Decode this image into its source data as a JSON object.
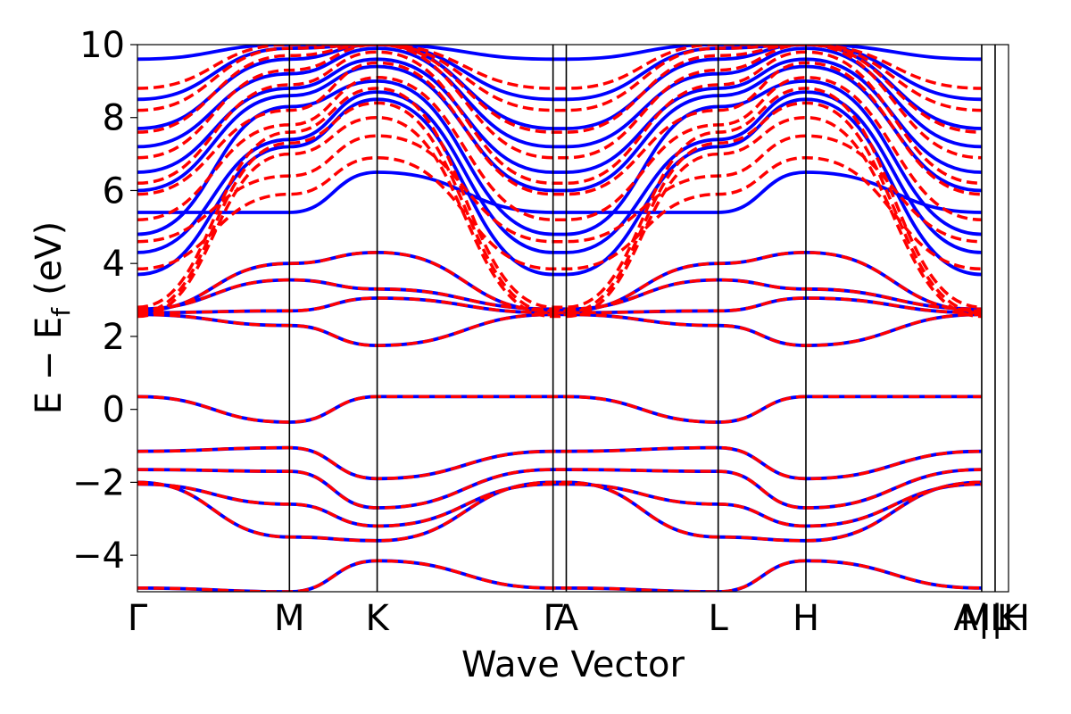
{
  "colors": {
    "series_a": "#0000ff",
    "series_b": "#ff0000",
    "axis": "#000000",
    "background": "#ffffff"
  },
  "chart_data": {
    "type": "line",
    "title": "",
    "xlabel": "Wave Vector",
    "ylabel_main": "E − E",
    "ylabel_sub": "f",
    "ylabel_unit": "(eV)",
    "ylim": [
      -5,
      10
    ],
    "xlim": [
      0,
      1
    ],
    "grid": false,
    "legend": "none",
    "yticks": [
      {
        "value": -4,
        "label": "−4"
      },
      {
        "value": -2,
        "label": "−2"
      },
      {
        "value": 0,
        "label": "0"
      },
      {
        "value": 2,
        "label": "2"
      },
      {
        "value": 4,
        "label": "4"
      },
      {
        "value": 6,
        "label": "6"
      },
      {
        "value": 8,
        "label": "8"
      },
      {
        "value": 10,
        "label": "10"
      }
    ],
    "kpoints": [
      {
        "label": "Γ",
        "x": 0.0
      },
      {
        "label": "M",
        "x": 0.1745
      },
      {
        "label": "K",
        "x": 0.2752
      },
      {
        "label": "Γ",
        "x": 0.4771
      },
      {
        "label": "A",
        "x": 0.4923
      },
      {
        "label": "L",
        "x": 0.6667
      },
      {
        "label": "H",
        "x": 0.7674
      },
      {
        "label": "A|L",
        "x": 0.9692
      },
      {
        "label": "M|H",
        "x": 0.9846
      },
      {
        "label": "K",
        "x": 1.0
      }
    ],
    "series": [
      {
        "style": "solid",
        "bands": [
          {
            "x": [
              0,
              0.1745,
              0.2752,
              0.4771,
              0.4923,
              0.6667,
              0.7674,
              0.9692
            ],
            "y": [
              0.35,
              -0.35,
              0.35,
              0.35,
              0.35,
              -0.35,
              0.35,
              0.35
            ]
          },
          {
            "x": [
              0,
              0.1745,
              0.2752,
              0.4771,
              0.4923,
              0.6667,
              0.7674,
              0.9692
            ],
            "y": [
              -1.15,
              -1.05,
              -1.9,
              -1.15,
              -1.15,
              -1.05,
              -1.9,
              -1.15
            ]
          },
          {
            "x": [
              0,
              0.1745,
              0.2752,
              0.4771,
              0.4923,
              0.6667,
              0.7674,
              0.9692
            ],
            "y": [
              -1.65,
              -1.7,
              -2.7,
              -1.65,
              -1.65,
              -1.7,
              -2.7,
              -1.65
            ]
          },
          {
            "x": [
              0,
              0.1745,
              0.2752,
              0.4771,
              0.4923,
              0.6667,
              0.7674,
              0.9692
            ],
            "y": [
              -2.05,
              -2.6,
              -3.2,
              -2.05,
              -2.05,
              -2.6,
              -3.2,
              -2.05
            ]
          },
          {
            "x": [
              0,
              0.1745,
              0.2752,
              0.4771,
              0.4923,
              0.6667,
              0.7674,
              0.9692
            ],
            "y": [
              -2.0,
              -3.5,
              -3.6,
              -2.0,
              -2.0,
              -3.5,
              -3.6,
              -2.0
            ]
          },
          {
            "x": [
              0,
              0.1745,
              0.2752,
              0.4771,
              0.4923,
              0.6667,
              0.7674,
              0.9692
            ],
            "y": [
              -4.9,
              -5.0,
              -4.15,
              -4.9,
              -4.9,
              -5.0,
              -4.15,
              -4.9
            ]
          },
          {
            "x": [
              0,
              0.1745,
              0.2752,
              0.4771,
              0.4923,
              0.6667,
              0.7674,
              0.9692
            ],
            "y": [
              2.6,
              2.3,
              1.75,
              2.6,
              2.6,
              2.3,
              1.75,
              2.6
            ]
          },
          {
            "x": [
              0,
              0.1745,
              0.2752,
              0.4771,
              0.4923,
              0.6667,
              0.7674,
              0.9692
            ],
            "y": [
              2.65,
              2.7,
              3.05,
              2.65,
              2.65,
              2.7,
              3.05,
              2.65
            ]
          },
          {
            "x": [
              0,
              0.1745,
              0.2752,
              0.4771,
              0.4923,
              0.6667,
              0.7674,
              0.9692
            ],
            "y": [
              2.75,
              3.55,
              3.3,
              2.75,
              2.75,
              3.55,
              3.3,
              2.75
            ]
          },
          {
            "x": [
              0,
              0.1745,
              0.2752,
              0.4771,
              0.4923,
              0.6667,
              0.7674,
              0.9692
            ],
            "y": [
              2.7,
              4.0,
              4.3,
              2.7,
              2.7,
              4.0,
              4.3,
              2.7
            ]
          },
          {
            "x": [
              0,
              0.1745,
              0.2752,
              0.4771,
              0.4923,
              0.6667,
              0.7674,
              0.9692
            ],
            "y": [
              3.7,
              7.2,
              8.5,
              3.7,
              3.7,
              7.2,
              8.5,
              3.7
            ]
          },
          {
            "x": [
              0,
              0.1745,
              0.2752,
              0.4771,
              0.4923,
              0.6667,
              0.7674,
              0.9692
            ],
            "y": [
              4.3,
              7.4,
              8.7,
              4.3,
              4.3,
              7.4,
              8.7,
              4.3
            ]
          },
          {
            "x": [
              0,
              0.1745,
              0.2752,
              0.4771,
              0.4923,
              0.6667,
              0.7674,
              0.9692
            ],
            "y": [
              4.8,
              8.3,
              9.0,
              4.8,
              4.8,
              8.3,
              9.0,
              4.8
            ]
          },
          {
            "x": [
              0,
              0.1745,
              0.2752,
              0.4771,
              0.4923,
              0.6667,
              0.7674,
              0.9692
            ],
            "y": [
              5.4,
              5.4,
              6.5,
              5.4,
              5.4,
              5.4,
              6.5,
              5.4
            ]
          },
          {
            "x": [
              0,
              0.1745,
              0.2752,
              0.4771,
              0.4923,
              0.6667,
              0.7674,
              0.9692
            ],
            "y": [
              6.0,
              8.6,
              9.4,
              6.0,
              6.0,
              8.6,
              9.4,
              6.0
            ]
          },
          {
            "x": [
              0,
              0.1745,
              0.2752,
              0.4771,
              0.4923,
              0.6667,
              0.7674,
              0.9692
            ],
            "y": [
              6.5,
              8.8,
              9.6,
              6.5,
              6.5,
              8.8,
              9.6,
              6.5
            ]
          },
          {
            "x": [
              0,
              0.1745,
              0.2752,
              0.4771,
              0.4923,
              0.6667,
              0.7674,
              0.9692
            ],
            "y": [
              7.2,
              9.2,
              9.9,
              7.2,
              7.2,
              9.2,
              9.9,
              7.2
            ]
          },
          {
            "x": [
              0,
              0.1745,
              0.2752,
              0.4771,
              0.4923,
              0.6667,
              0.7674,
              0.9692
            ],
            "y": [
              7.7,
              9.6,
              10.0,
              7.7,
              7.7,
              9.6,
              10.0,
              7.7
            ]
          },
          {
            "x": [
              0,
              0.1745,
              0.2752,
              0.4771,
              0.4923,
              0.6667,
              0.7674,
              0.9692
            ],
            "y": [
              8.5,
              9.9,
              10.0,
              8.5,
              8.5,
              9.9,
              10.0,
              8.5
            ]
          },
          {
            "x": [
              0,
              0.1745,
              0.2752,
              0.4771,
              0.4923,
              0.6667,
              0.7674,
              0.9692
            ],
            "y": [
              9.6,
              10.0,
              10.0,
              9.6,
              9.6,
              10.0,
              10.0,
              9.6
            ]
          }
        ]
      },
      {
        "style": "dashed",
        "bands": [
          {
            "x": [
              0,
              0.1745,
              0.2752,
              0.4771,
              0.4923,
              0.6667,
              0.7674,
              0.9692
            ],
            "y": [
              0.35,
              -0.35,
              0.35,
              0.35,
              0.35,
              -0.35,
              0.35,
              0.35
            ]
          },
          {
            "x": [
              0,
              0.1745,
              0.2752,
              0.4771,
              0.4923,
              0.6667,
              0.7674,
              0.9692
            ],
            "y": [
              -1.15,
              -1.05,
              -1.9,
              -1.15,
              -1.15,
              -1.05,
              -1.9,
              -1.15
            ]
          },
          {
            "x": [
              0,
              0.1745,
              0.2752,
              0.4771,
              0.4923,
              0.6667,
              0.7674,
              0.9692
            ],
            "y": [
              -1.65,
              -1.7,
              -2.7,
              -1.65,
              -1.65,
              -1.7,
              -2.7,
              -1.65
            ]
          },
          {
            "x": [
              0,
              0.1745,
              0.2752,
              0.4771,
              0.4923,
              0.6667,
              0.7674,
              0.9692
            ],
            "y": [
              -2.05,
              -2.6,
              -3.2,
              -2.05,
              -2.05,
              -2.6,
              -3.2,
              -2.05
            ]
          },
          {
            "x": [
              0,
              0.1745,
              0.2752,
              0.4771,
              0.4923,
              0.6667,
              0.7674,
              0.9692
            ],
            "y": [
              -2.0,
              -3.5,
              -3.6,
              -2.0,
              -2.0,
              -3.5,
              -3.6,
              -2.0
            ]
          },
          {
            "x": [
              0,
              0.1745,
              0.2752,
              0.4771,
              0.4923,
              0.6667,
              0.7674,
              0.9692
            ],
            "y": [
              -4.9,
              -5.0,
              -4.15,
              -4.9,
              -4.9,
              -5.0,
              -4.15,
              -4.9
            ]
          },
          {
            "x": [
              0,
              0.1745,
              0.2752,
              0.4771,
              0.4923,
              0.6667,
              0.7674,
              0.9692
            ],
            "y": [
              2.6,
              2.3,
              1.75,
              2.6,
              2.6,
              2.3,
              1.75,
              2.6
            ]
          },
          {
            "x": [
              0,
              0.1745,
              0.2752,
              0.4771,
              0.4923,
              0.6667,
              0.7674,
              0.9692
            ],
            "y": [
              2.65,
              2.7,
              3.05,
              2.65,
              2.65,
              2.7,
              3.05,
              2.65
            ]
          },
          {
            "x": [
              0,
              0.1745,
              0.2752,
              0.4771,
              0.4923,
              0.6667,
              0.7674,
              0.9692
            ],
            "y": [
              2.75,
              3.55,
              3.3,
              2.75,
              2.75,
              3.55,
              3.3,
              2.75
            ]
          },
          {
            "x": [
              0,
              0.1745,
              0.2752,
              0.4771,
              0.4923,
              0.6667,
              0.7674,
              0.9692
            ],
            "y": [
              2.7,
              4.0,
              4.3,
              2.7,
              2.7,
              4.0,
              4.3,
              2.7
            ]
          },
          {
            "x": [
              0,
              0.1745,
              0.2752,
              0.4771,
              0.4923,
              0.6667,
              0.7674,
              0.9692
            ],
            "y": [
              2.55,
              7.0,
              8.0,
              2.55,
              2.55,
              7.0,
              8.0,
              2.55
            ]
          },
          {
            "x": [
              0,
              0.1745,
              0.2752,
              0.4771,
              0.4923,
              0.6667,
              0.7674,
              0.9692
            ],
            "y": [
              2.65,
              7.3,
              8.4,
              2.65,
              2.65,
              7.3,
              8.4,
              2.65
            ]
          },
          {
            "x": [
              0,
              0.1745,
              0.2752,
              0.4771,
              0.4923,
              0.6667,
              0.7674,
              0.9692
            ],
            "y": [
              2.8,
              7.6,
              8.8,
              2.8,
              2.8,
              7.6,
              8.8,
              2.8
            ]
          },
          {
            "x": [
              0,
              0.1745,
              0.2752,
              0.4771,
              0.4923,
              0.6667,
              0.7674,
              0.9692
            ],
            "y": [
              3.85,
              5.9,
              6.9,
              3.85,
              3.85,
              5.9,
              6.9,
              3.85
            ]
          },
          {
            "x": [
              0,
              0.1745,
              0.2752,
              0.4771,
              0.4923,
              0.6667,
              0.7674,
              0.9692
            ],
            "y": [
              4.6,
              6.4,
              7.5,
              4.6,
              4.6,
              6.4,
              7.5,
              4.6
            ]
          },
          {
            "x": [
              0,
              0.1745,
              0.2752,
              0.4771,
              0.4923,
              0.6667,
              0.7674,
              0.9692
            ],
            "y": [
              5.2,
              7.8,
              9.1,
              5.2,
              5.2,
              7.8,
              9.1,
              5.2
            ]
          },
          {
            "x": [
              0,
              0.1745,
              0.2752,
              0.4771,
              0.4923,
              0.6667,
              0.7674,
              0.9692
            ],
            "y": [
              5.9,
              8.2,
              9.5,
              5.9,
              5.9,
              8.2,
              9.5,
              5.9
            ]
          },
          {
            "x": [
              0,
              0.1745,
              0.2752,
              0.4771,
              0.4923,
              0.6667,
              0.7674,
              0.9692
            ],
            "y": [
              6.2,
              8.9,
              9.8,
              6.2,
              6.2,
              8.9,
              9.8,
              6.2
            ]
          },
          {
            "x": [
              0,
              0.1745,
              0.2752,
              0.4771,
              0.4923,
              0.6667,
              0.7674,
              0.9692
            ],
            "y": [
              6.9,
              9.3,
              10.0,
              6.9,
              6.9,
              9.3,
              10.0,
              6.9
            ]
          },
          {
            "x": [
              0,
              0.1745,
              0.2752,
              0.4771,
              0.4923,
              0.6667,
              0.7674,
              0.9692
            ],
            "y": [
              7.6,
              9.7,
              10.0,
              7.6,
              7.6,
              9.7,
              10.0,
              7.6
            ]
          },
          {
            "x": [
              0,
              0.1745,
              0.2752,
              0.4771,
              0.4923,
              0.6667,
              0.7674,
              0.9692
            ],
            "y": [
              8.2,
              9.9,
              10.0,
              8.2,
              8.2,
              9.9,
              10.0,
              8.2
            ]
          },
          {
            "x": [
              0,
              0.1745,
              0.2752,
              0.4771,
              0.4923,
              0.6667,
              0.7674,
              0.9692
            ],
            "y": [
              8.8,
              10.0,
              10.0,
              8.8,
              8.8,
              10.0,
              10.0,
              8.8
            ]
          }
        ]
      }
    ]
  }
}
